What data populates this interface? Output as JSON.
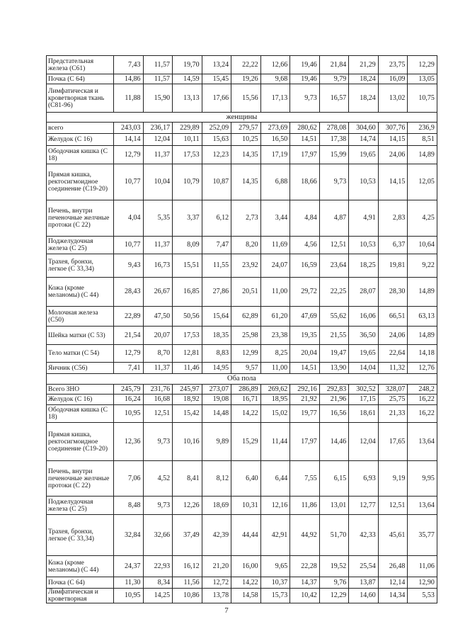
{
  "table": {
    "rows": [
      {
        "label": "Предстательная железа (С61)",
        "values": [
          "7,43",
          "11,57",
          "19,70",
          "13,24",
          "22,22",
          "12,66",
          "19,46",
          "21,84",
          "21,29",
          "23,75",
          "12,29"
        ]
      },
      {
        "label": "Почка (С 64)",
        "values": [
          "14,86",
          "11,57",
          "14,59",
          "15,45",
          "19,26",
          "9,68",
          "19,46",
          "9,79",
          "18,24",
          "16,09",
          "13,05"
        ]
      },
      {
        "label": "Лимфатическая и кроветворная ткань (С81-96)",
        "values": [
          "11,88",
          "15,90",
          "13,13",
          "17,66",
          "15,56",
          "17,13",
          "9,73",
          "16,57",
          "18,24",
          "13,02",
          "10,75"
        ]
      },
      {
        "section": "женщины"
      },
      {
        "label": "всего",
        "values": [
          "243,03",
          "236,17",
          "229,89",
          "252,09",
          "279,57",
          "273,69",
          "280,62",
          "278,08",
          "304,60",
          "307,76",
          "236,9"
        ]
      },
      {
        "label": "Желудок (С 16)",
        "values": [
          "14,14",
          "12,04",
          "10,11",
          "15,63",
          "10,25",
          "16,50",
          "14,51",
          "17,38",
          "14,74",
          "14,15",
          "8,51"
        ]
      },
      {
        "label": "Ободочная кишка (С 18)",
        "values": [
          "12,79",
          "11,37",
          "17,53",
          "12,23",
          "14,35",
          "17,19",
          "17,97",
          "15,99",
          "19,65",
          "24,06",
          "14,89"
        ]
      },
      {
        "label": "Прямая кишка, ректосигмоидное соединение (С19-20)",
        "values": [
          "10,77",
          "10,04",
          "10,79",
          "10,87",
          "14,35",
          "6,88",
          "18,66",
          "9,73",
          "10,53",
          "14,15",
          "12,05"
        ]
      },
      {
        "label": "Печень, внутри печеночные желчные протоки (С 22)",
        "values": [
          "4,04",
          "5,35",
          "3,37",
          "6,12",
          "2,73",
          "3,44",
          "4,84",
          "4,87",
          "4,91",
          "2,83",
          "4,25"
        ]
      },
      {
        "label": "Поджелудочная железа (С 25)",
        "values": [
          "10,77",
          "11,37",
          "8,09",
          "7,47",
          "8,20",
          "11,69",
          "4,56",
          "12,51",
          "10,53",
          "6,37",
          "10,64"
        ]
      },
      {
        "label": "Трахея, бронхи, легкое (С 33,34)",
        "values": [
          "9,43",
          "16,73",
          "15,51",
          "11,55",
          "23,92",
          "24,07",
          "16,59",
          "23,64",
          "18,25",
          "19,81",
          "9,22"
        ]
      },
      {
        "label": "Кожа (кроме меланомы) (С 44)",
        "values": [
          "28,43",
          "26,67",
          "16,85",
          "27,86",
          "20,51",
          "11,00",
          "29,72",
          "22,25",
          "28,07",
          "28,30",
          "14,89"
        ]
      },
      {
        "label": "Молочная железа (С50)",
        "values": [
          "22,89",
          "47,50",
          "50,56",
          "15,64",
          "62,89",
          "61,20",
          "47,69",
          "55,62",
          "16,06",
          "66,51",
          "63,13"
        ]
      },
      {
        "label": "Шейка матки (С 53)",
        "values": [
          "21,54",
          "20,07",
          "17,53",
          "18,35",
          "25,98",
          "23,38",
          "19,35",
          "21,55",
          "36,50",
          "24,06",
          "14,89"
        ]
      },
      {
        "label": "Тело матки (С 54)",
        "values": [
          "12,79",
          "8,70",
          "12,81",
          "8,83",
          "12,99",
          "8,25",
          "20,04",
          "19,47",
          "19,65",
          "22,64",
          "14,18"
        ]
      },
      {
        "label": "Яичник (С56)",
        "values": [
          "7,41",
          "11,37",
          "11,46",
          "14,95",
          "9,57",
          "11,00",
          "14,51",
          "13,90",
          "14,04",
          "11,32",
          "12,76"
        ]
      },
      {
        "section": "Оба пола"
      },
      {
        "label": "Всего ЗНО",
        "values": [
          "245,79",
          "231,76",
          "245,97",
          "273,07",
          "286,89",
          "269,62",
          "292,16",
          "292,83",
          "302,52",
          "328,07",
          "248,2"
        ]
      },
      {
        "label": "Желудок (С 16)",
        "values": [
          "16,24",
          "16,68",
          "18,92",
          "19,08",
          "16,71",
          "18,95",
          "21,92",
          "21,96",
          "17,15",
          "25,75",
          "16,22"
        ]
      },
      {
        "label": "Ободочная кишка (С 18)",
        "values": [
          "10,95",
          "12,51",
          "15,42",
          "14,48",
          "14,22",
          "15,02",
          "19,77",
          "16,56",
          "18,61",
          "21,33",
          "16,22"
        ]
      },
      {
        "label": "Прямая кишка, ректосигмоидное соединение (С19-20)",
        "values": [
          "12,36",
          "9,73",
          "10,16",
          "9,89",
          "15,29",
          "11,44",
          "17,97",
          "14,46",
          "12,04",
          "17,65",
          "13,64"
        ]
      },
      {
        "label": "Печень, внутри печеночные желчные протоки (С 22)",
        "values": [
          "7,06",
          "4,52",
          "8,41",
          "8,12",
          "6,40",
          "6,44",
          "7,55",
          "6,15",
          "6,93",
          "9,19",
          "9,95"
        ]
      },
      {
        "label": "Поджелудочная железа (С 25)",
        "values": [
          "8,48",
          "9,73",
          "12,26",
          "18,69",
          "10,31",
          "12,16",
          "11,86",
          "13,01",
          "12,77",
          "12,51",
          "13,64"
        ]
      },
      {
        "label": "Трахея, бронхи, легкое (С 33,34)",
        "values": [
          "32,84",
          "32,66",
          "37,49",
          "42,39",
          "44,44",
          "42,91",
          "44,92",
          "51,70",
          "42,33",
          "45,61",
          "35,77"
        ]
      },
      {
        "label": "Кожа (кроме меланомы) (С 44)",
        "values": [
          "24,37",
          "22,93",
          "16,12",
          "21,20",
          "16,00",
          "9,65",
          "22,28",
          "19,52",
          "25,54",
          "26,48",
          "11,06"
        ]
      },
      {
        "label": "Почка (С 64)",
        "values": [
          "11,30",
          "8,34",
          "11,56",
          "12,72",
          "14,22",
          "10,37",
          "14,37",
          "9,76",
          "13,87",
          "12,14",
          "12,90"
        ]
      },
      {
        "label": "Лимфатическая и кроветворная",
        "values": [
          "10,95",
          "14,25",
          "10,86",
          "13,78",
          "14,58",
          "15,73",
          "10,42",
          "12,29",
          "14,60",
          "14,34",
          "5,53"
        ]
      }
    ]
  },
  "page_number": "7"
}
